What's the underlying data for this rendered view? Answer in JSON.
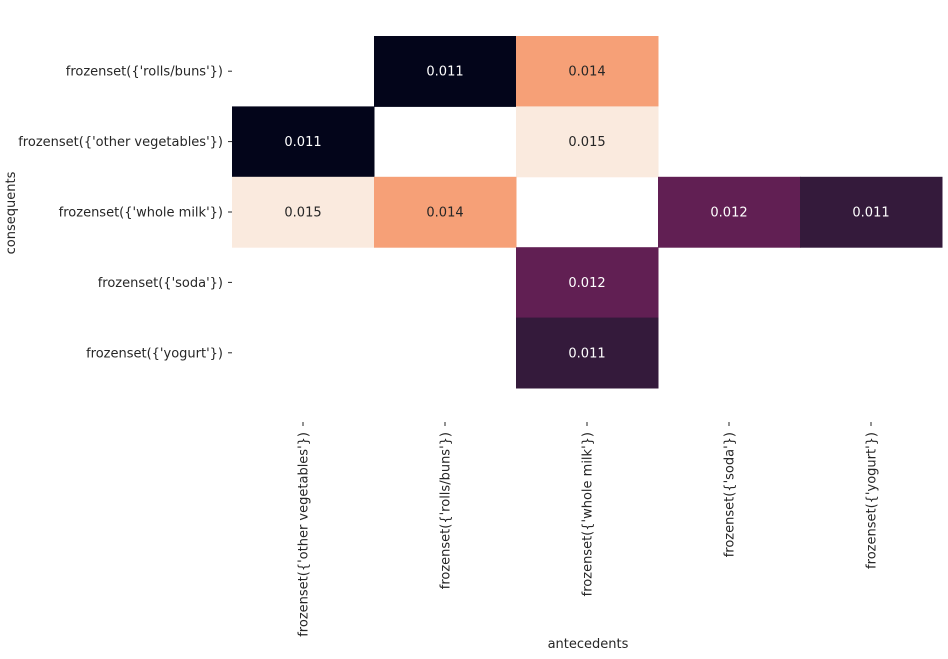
{
  "chart_data": {
    "type": "heatmap",
    "title": "",
    "xlabel": "antecedents",
    "ylabel": "consequents",
    "x_categories": [
      "frozenset({'other vegetables'})",
      "frozenset({'rolls/buns'})",
      "frozenset({'whole milk'})",
      "frozenset({'soda'})",
      "frozenset({'yogurt'})"
    ],
    "y_categories": [
      "frozenset({'rolls/buns'})",
      "frozenset({'other vegetables'})",
      "frozenset({'whole milk'})",
      "frozenset({'soda'})",
      "frozenset({'yogurt'})"
    ],
    "values": [
      [
        null,
        0.011,
        0.014,
        null,
        null
      ],
      [
        0.011,
        null,
        0.015,
        null,
        null
      ],
      [
        0.015,
        0.014,
        null,
        0.012,
        0.011
      ],
      [
        null,
        null,
        0.012,
        null,
        null
      ],
      [
        null,
        null,
        0.011,
        null,
        null
      ]
    ],
    "value_format": "0.000",
    "colormap": "rocket",
    "colorbar": false,
    "grid": false,
    "palette": {
      "0.011": "#03051a",
      "0.011b": "#341a3b",
      "0.012": "#611f53",
      "0.014": "#f6a077",
      "0.015": "#faeade"
    }
  }
}
